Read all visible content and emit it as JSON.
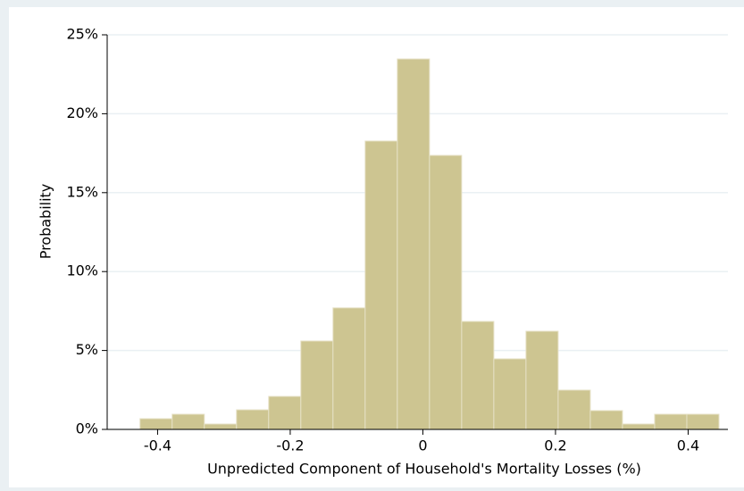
{
  "chart_data": {
    "type": "histogram",
    "x_label": "Unpredicted Component of Household's Mortality Losses (%)",
    "y_label": "Probability",
    "bins": [
      -0.4265,
      -0.378,
      -0.3295,
      -0.281,
      -0.2325,
      -0.184,
      -0.1355,
      -0.087,
      -0.0385,
      0.01,
      0.0585,
      0.107,
      0.1555,
      0.204,
      0.2525,
      0.301,
      0.3495,
      0.398,
      0.4465
    ],
    "values": [
      0.68,
      0.96,
      0.34,
      1.24,
      2.09,
      5.6,
      7.7,
      18.27,
      23.47,
      17.36,
      6.84,
      4.47,
      6.22,
      2.49,
      1.19,
      0.34,
      0.96,
      0.96
    ],
    "color": "#cdc591",
    "xlim": [
      -0.476,
      0.46
    ],
    "ylim": [
      0,
      25
    ],
    "xticks": [
      -0.4,
      -0.2,
      0,
      0.2,
      0.4
    ],
    "yticks": [
      {
        "value": 0,
        "label": "0%"
      },
      {
        "value": 5,
        "label": "5%"
      },
      {
        "value": 10,
        "label": "10%"
      },
      {
        "value": 15,
        "label": "15%"
      },
      {
        "value": 20,
        "label": "20%"
      },
      {
        "value": 25,
        "label": "25%"
      }
    ],
    "grid": true
  }
}
